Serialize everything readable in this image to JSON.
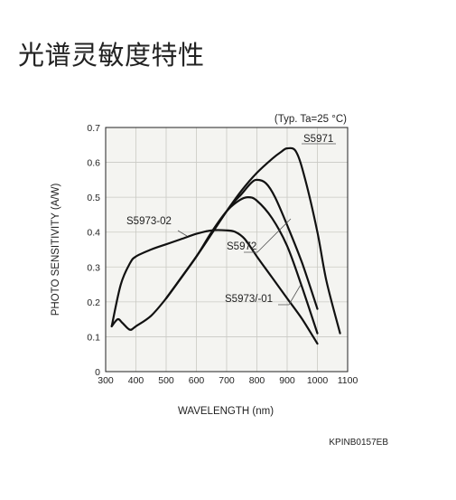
{
  "page": {
    "title": "光谱灵敏度特性"
  },
  "chart_data": {
    "type": "line",
    "note": "(Typ. Ta=25 °C)",
    "xlabel": "WAVELENGTH (nm)",
    "ylabel": "PHOTO SENSITIVITY (A/W)",
    "xlim": [
      300,
      1100
    ],
    "ylim": [
      0,
      0.7
    ],
    "x_ticks": [
      300,
      400,
      500,
      600,
      700,
      800,
      900,
      1000,
      1100
    ],
    "y_ticks": [
      0,
      0.1,
      0.2,
      0.3,
      0.4,
      0.5,
      0.6,
      0.7
    ],
    "grid": true,
    "series": [
      {
        "name": "S5971",
        "x": [
          500,
          600,
          700,
          750,
          800,
          850,
          880,
          900,
          930,
          960,
          1000,
          1030,
          1075
        ],
        "y": [
          0.21,
          0.33,
          0.46,
          0.52,
          0.57,
          0.61,
          0.63,
          0.64,
          0.63,
          0.55,
          0.4,
          0.26,
          0.11
        ]
      },
      {
        "name": "S5972",
        "x": [
          500,
          600,
          700,
          750,
          780,
          800,
          830,
          860,
          900,
          950,
          1000
        ],
        "y": [
          0.21,
          0.33,
          0.46,
          0.51,
          0.54,
          0.55,
          0.54,
          0.5,
          0.42,
          0.31,
          0.18
        ]
      },
      {
        "name": "S5973-02",
        "x": [
          320,
          350,
          380,
          400,
          450,
          500,
          550,
          600,
          650,
          700,
          730,
          760,
          800,
          850,
          900,
          950,
          1000
        ],
        "y": [
          0.13,
          0.25,
          0.31,
          0.33,
          0.35,
          0.365,
          0.38,
          0.395,
          0.405,
          0.405,
          0.4,
          0.38,
          0.33,
          0.27,
          0.21,
          0.15,
          0.08
        ]
      },
      {
        "name": "S5973/-01",
        "x": [
          320,
          340,
          355,
          380,
          400,
          450,
          500,
          550,
          600,
          650,
          700,
          740,
          770,
          800,
          850,
          900,
          950,
          1000
        ],
        "y": [
          0.13,
          0.15,
          0.14,
          0.12,
          0.13,
          0.16,
          0.21,
          0.27,
          0.33,
          0.4,
          0.46,
          0.49,
          0.5,
          0.49,
          0.44,
          0.36,
          0.24,
          0.11
        ]
      }
    ],
    "series_labels": [
      "S5971",
      "S5972",
      "S5973-02",
      "S5973/-01"
    ],
    "code": "KPINB0157EB"
  }
}
